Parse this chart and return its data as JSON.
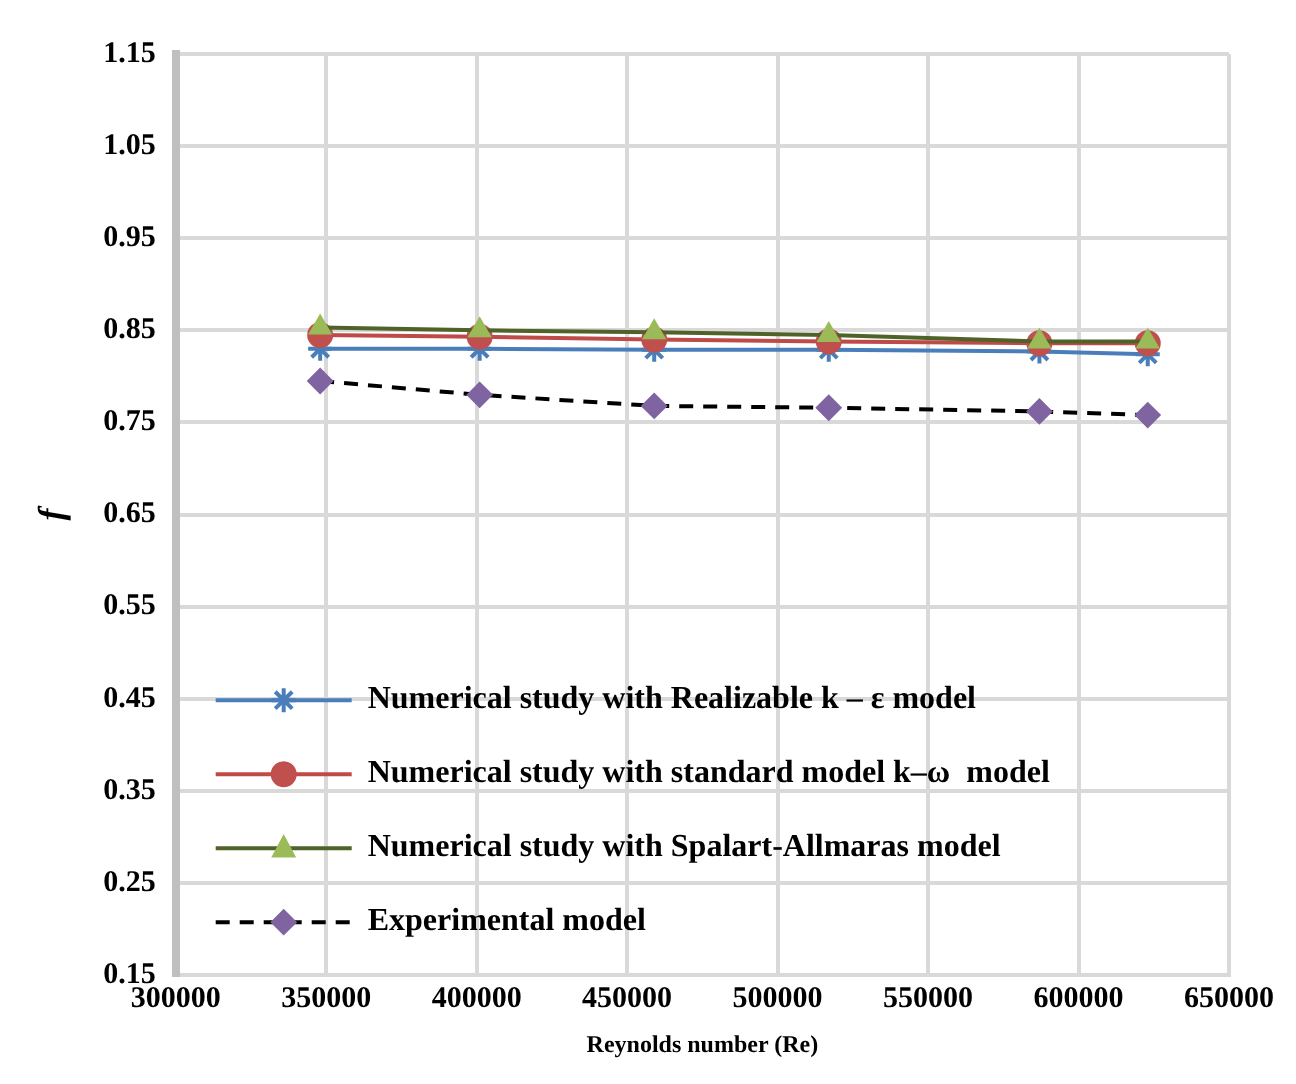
{
  "chart_data": {
    "type": "line",
    "xlabel": "Reynolds number (Re)",
    "ylabel": "f",
    "xlim": [
      300000,
      650000
    ],
    "xticks": [
      300000,
      350000,
      400000,
      450000,
      500000,
      550000,
      600000,
      650000
    ],
    "ylim": [
      0.15,
      1.15
    ],
    "yticks": [
      0.15,
      0.25,
      0.35,
      0.45,
      0.55,
      0.65,
      0.75,
      0.85,
      0.95,
      1.05,
      1.15
    ],
    "grid": true,
    "legend": "bottom left",
    "x": [
      348000,
      401000,
      459000,
      517000,
      587000,
      623000
    ],
    "series": [
      {
        "name": "Numerical study with Realizable k – ε model",
        "color": "#4a7ebb",
        "marker": "cross",
        "line_style": "solid",
        "values": [
          0.83,
          0.83,
          0.829,
          0.829,
          0.827,
          0.824
        ]
      },
      {
        "name": "Numerical study with standard model k–ω  model",
        "color": "#be4b48",
        "marker": "circle",
        "line_style": "solid",
        "values": [
          0.845,
          0.843,
          0.84,
          0.838,
          0.836,
          0.836
        ]
      },
      {
        "name": "Numerical study with Spalart-Allmaras model",
        "color": "#4f6228",
        "marker": "triangle",
        "line_style": "solid",
        "values": [
          0.853,
          0.85,
          0.848,
          0.845,
          0.838,
          0.838
        ]
      },
      {
        "name": "Experimental model",
        "color": "#000000",
        "marker": "diamond",
        "line_style": "dashed",
        "values": [
          0.795,
          0.78,
          0.768,
          0.766,
          0.762,
          0.758
        ]
      }
    ]
  }
}
